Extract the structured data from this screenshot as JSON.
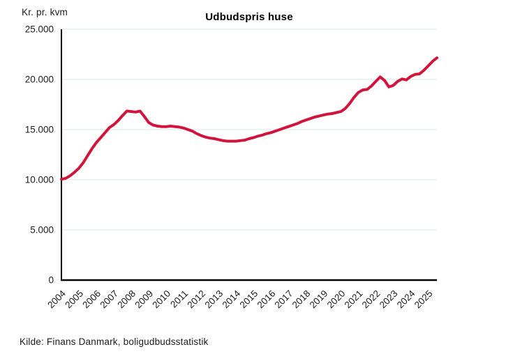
{
  "header": {
    "unit_label": "Kr. pr. kvm",
    "title": "Udbudspris huse"
  },
  "footer": {
    "source": "Kilde: Finans Danmark, boligudbudsstatistik"
  },
  "chart_data": {
    "type": "line",
    "title": "Udbudspris huse",
    "ylabel": "Kr. pr. kvm",
    "xlabel": "",
    "source": "Kilde: Finans Danmark, boligudbudsstatistik",
    "grid": "horizontal-gridlines-on",
    "legend": "none",
    "xlim": [
      2004,
      2025.5
    ],
    "ylim": [
      0,
      25000
    ],
    "line_color": "#d0143c",
    "gridline_color": "#dde4e2",
    "axis_color": "#000000",
    "x_ticks": [
      2004,
      2005,
      2006,
      2007,
      2008,
      2009,
      2010,
      2011,
      2012,
      2013,
      2014,
      2015,
      2016,
      2017,
      2018,
      2019,
      2020,
      2021,
      2022,
      2023,
      2024,
      2025
    ],
    "y_ticks": [
      {
        "value": 0,
        "label": "0"
      },
      {
        "value": 5000,
        "label": "5.000"
      },
      {
        "value": 10000,
        "label": "10.000"
      },
      {
        "value": 15000,
        "label": "15.000"
      },
      {
        "value": 20000,
        "label": "20.000"
      },
      {
        "value": 25000,
        "label": "25.000"
      }
    ],
    "series": [
      {
        "name": "Udbudspris huse",
        "color": "#d0143c",
        "x": [
          2004,
          2004.25,
          2004.5,
          2004.75,
          2005,
          2005.25,
          2005.5,
          2005.75,
          2006,
          2006.25,
          2006.5,
          2006.75,
          2007,
          2007.25,
          2007.5,
          2007.75,
          2008,
          2008.25,
          2008.5,
          2008.75,
          2009,
          2009.25,
          2009.5,
          2009.75,
          2010,
          2010.25,
          2010.5,
          2010.75,
          2011,
          2011.25,
          2011.5,
          2011.75,
          2012,
          2012.25,
          2012.5,
          2012.75,
          2013,
          2013.25,
          2013.5,
          2013.75,
          2014,
          2014.25,
          2014.5,
          2014.75,
          2015,
          2015.25,
          2015.5,
          2015.75,
          2016,
          2016.25,
          2016.5,
          2016.75,
          2017,
          2017.25,
          2017.5,
          2017.75,
          2018,
          2018.25,
          2018.5,
          2018.75,
          2019,
          2019.25,
          2019.5,
          2019.75,
          2020,
          2020.25,
          2020.5,
          2020.75,
          2021,
          2021.25,
          2021.5,
          2021.75,
          2022,
          2022.25,
          2022.5,
          2022.75,
          2023,
          2023.25,
          2023.5,
          2023.75,
          2024,
          2024.25,
          2024.5,
          2024.75,
          2025,
          2025.25,
          2025.5
        ],
        "values": [
          10050,
          10150,
          10400,
          10750,
          11150,
          11700,
          12400,
          13100,
          13700,
          14200,
          14700,
          15200,
          15500,
          15900,
          16400,
          16850,
          16800,
          16750,
          16850,
          16300,
          15700,
          15450,
          15350,
          15300,
          15300,
          15350,
          15300,
          15250,
          15150,
          15000,
          14850,
          14600,
          14400,
          14250,
          14150,
          14100,
          14000,
          13900,
          13850,
          13850,
          13850,
          13900,
          13950,
          14100,
          14200,
          14350,
          14450,
          14600,
          14700,
          14850,
          15000,
          15150,
          15300,
          15450,
          15600,
          15800,
          15950,
          16100,
          16250,
          16350,
          16450,
          16550,
          16600,
          16700,
          16800,
          17100,
          17600,
          18200,
          18700,
          18950,
          19000,
          19350,
          19800,
          20250,
          19900,
          19250,
          19400,
          19800,
          20050,
          19950,
          20300,
          20500,
          20550,
          20900,
          21350,
          21800,
          22150
        ]
      }
    ]
  }
}
